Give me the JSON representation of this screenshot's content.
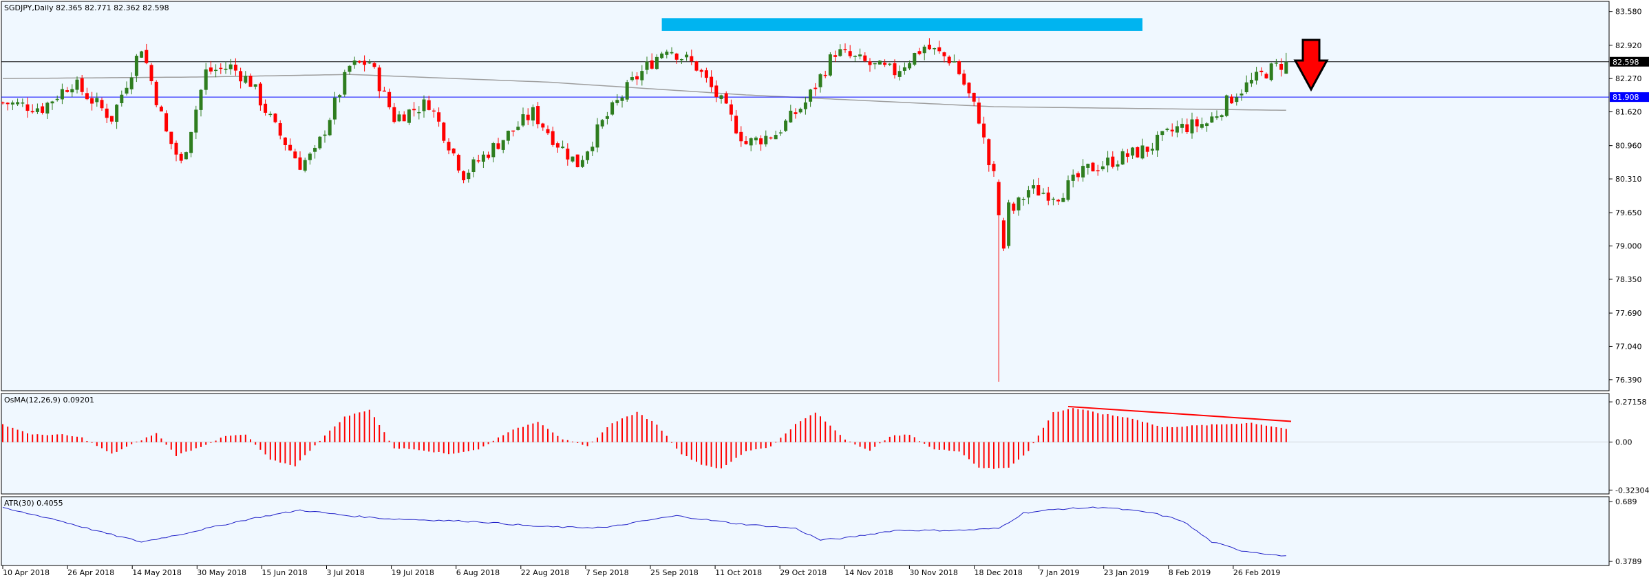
{
  "colors": {
    "background": "#f0f8ff",
    "bull": "#2e7d1f",
    "bear": "#ff0000",
    "ma": "#9e9e9e",
    "resistance_zone": "#00b4f0",
    "support_line": "#0000ff",
    "price_line": "#000000",
    "osma_bars": "#ff0000",
    "atr_line": "#2020c8",
    "trend_line": "#ff0000",
    "arrow": "#ff0000",
    "grid_text": "#000000"
  },
  "chart_data": [
    {
      "panel": "price",
      "type": "candlestick",
      "title": "SGDJPY,Daily  82.365 82.771 82.362 82.598",
      "ylim": [
        76.2,
        83.75
      ],
      "y_ticks": [
        "83.580",
        "82.920",
        "82.270",
        "81.620",
        "80.960",
        "80.310",
        "79.650",
        "79.000",
        "78.350",
        "77.690",
        "77.040",
        "76.390"
      ],
      "x_ticks": [
        "10 Apr 2018",
        "26 Apr 2018",
        "14 May 2018",
        "30 May 2018",
        "15 Jun 2018",
        "3 Jul 2018",
        "19 Jul 2018",
        "6 Aug 2018",
        "22 Aug 2018",
        "7 Sep 2018",
        "25 Sep 2018",
        "11 Oct 2018",
        "29 Oct 2018",
        "14 Nov 2018",
        "30 Nov 2018",
        "18 Dec 2018",
        "7 Jan 2019",
        "23 Jan 2019",
        "8 Feb 2019",
        "26 Feb 2019"
      ],
      "current_price_label": "82.598",
      "current_price": 82.598,
      "support_label": "81.908",
      "support_price": 81.908,
      "resistance_zone": [
        83.2,
        83.45
      ],
      "anchors": [
        [
          0,
          81.8
        ],
        [
          8,
          81.7
        ],
        [
          14,
          82.2
        ],
        [
          22,
          81.5
        ],
        [
          28,
          82.9
        ],
        [
          33,
          81.2
        ],
        [
          36,
          80.6
        ],
        [
          41,
          82.4
        ],
        [
          46,
          82.5
        ],
        [
          50,
          82.2
        ],
        [
          55,
          81.3
        ],
        [
          60,
          80.6
        ],
        [
          63,
          80.8
        ],
        [
          70,
          82.5
        ],
        [
          74,
          82.6
        ],
        [
          79,
          81.5
        ],
        [
          86,
          81.8
        ],
        [
          93,
          80.4
        ],
        [
          101,
          81.1
        ],
        [
          107,
          81.6
        ],
        [
          112,
          81.0
        ],
        [
          116,
          80.6
        ],
        [
          121,
          81.4
        ],
        [
          127,
          82.2
        ],
        [
          134,
          82.9
        ],
        [
          140,
          82.5
        ],
        [
          145,
          81.8
        ],
        [
          150,
          81.0
        ],
        [
          156,
          81.2
        ],
        [
          162,
          81.8
        ],
        [
          168,
          82.8
        ],
        [
          176,
          82.5
        ],
        [
          180,
          82.4
        ],
        [
          186,
          82.9
        ],
        [
          192,
          82.6
        ],
        [
          197,
          81.5
        ],
        [
          199,
          80.6
        ],
        [
          201,
          80.1
        ],
        [
          204,
          79.7
        ],
        [
          207,
          80.1
        ],
        [
          213,
          80.0
        ],
        [
          219,
          80.5
        ],
        [
          225,
          80.7
        ],
        [
          231,
          80.9
        ],
        [
          237,
          81.3
        ],
        [
          243,
          81.4
        ],
        [
          249,
          82.0
        ],
        [
          255,
          82.4
        ],
        [
          259,
          82.6
        ]
      ],
      "special_candles": [
        {
          "i": 201,
          "o": 80.25,
          "h": 80.3,
          "l": 76.35,
          "c": 79.6
        },
        {
          "i": 202,
          "o": 79.5,
          "h": 79.55,
          "l": 78.9,
          "c": 78.95
        },
        {
          "i": 203,
          "o": 79.0,
          "h": 79.9,
          "l": 78.95,
          "c": 79.85
        },
        {
          "i": 259,
          "o": 82.365,
          "h": 82.771,
          "l": 82.362,
          "c": 82.598
        }
      ],
      "moving_average": [
        [
          0,
          82.27
        ],
        [
          40,
          82.3
        ],
        [
          70,
          82.35
        ],
        [
          110,
          82.2
        ],
        [
          150,
          81.95
        ],
        [
          200,
          81.72
        ],
        [
          259,
          81.65
        ]
      ]
    },
    {
      "panel": "osma",
      "type": "bar",
      "title": "OsMA(12,26,9) 0.09201",
      "ylim": [
        -0.34,
        0.3
      ],
      "y_ticks": [
        "0.27158",
        "0.00",
        "-0.32304"
      ],
      "anchors": [
        [
          0,
          0.12
        ],
        [
          6,
          0.05
        ],
        [
          12,
          0.05
        ],
        [
          16,
          0.03
        ],
        [
          22,
          -0.08
        ],
        [
          27,
          0.0
        ],
        [
          31,
          0.06
        ],
        [
          35,
          -0.09
        ],
        [
          40,
          -0.03
        ],
        [
          45,
          0.04
        ],
        [
          49,
          0.05
        ],
        [
          54,
          -0.12
        ],
        [
          59,
          -0.16
        ],
        [
          63,
          -0.02
        ],
        [
          69,
          0.17
        ],
        [
          74,
          0.22
        ],
        [
          79,
          -0.04
        ],
        [
          84,
          -0.05
        ],
        [
          90,
          -0.08
        ],
        [
          96,
          -0.05
        ],
        [
          102,
          0.07
        ],
        [
          108,
          0.14
        ],
        [
          113,
          0.02
        ],
        [
          118,
          -0.03
        ],
        [
          123,
          0.13
        ],
        [
          128,
          0.2
        ],
        [
          132,
          0.12
        ],
        [
          137,
          -0.08
        ],
        [
          141,
          -0.15
        ],
        [
          145,
          -0.18
        ],
        [
          150,
          -0.06
        ],
        [
          155,
          -0.03
        ],
        [
          160,
          0.12
        ],
        [
          164,
          0.2
        ],
        [
          170,
          0.02
        ],
        [
          175,
          -0.06
        ],
        [
          179,
          0.04
        ],
        [
          183,
          0.05
        ],
        [
          188,
          -0.05
        ],
        [
          193,
          -0.06
        ],
        [
          197,
          -0.17
        ],
        [
          200,
          -0.18
        ],
        [
          203,
          -0.17
        ],
        [
          207,
          -0.06
        ],
        [
          212,
          0.2
        ],
        [
          216,
          0.23
        ],
        [
          222,
          0.19
        ],
        [
          228,
          0.16
        ],
        [
          234,
          0.1
        ],
        [
          240,
          0.11
        ],
        [
          246,
          0.12
        ],
        [
          252,
          0.13
        ],
        [
          259,
          0.09
        ]
      ],
      "trend_line": [
        [
          215,
          0.24
        ],
        [
          260,
          0.14
        ]
      ]
    },
    {
      "panel": "atr",
      "type": "line",
      "title": "ATR(30) 0.4055",
      "ylim": [
        0.365,
        0.7
      ],
      "y_ticks": [
        "0.689",
        "0.3789"
      ],
      "anchors": [
        [
          0,
          0.655
        ],
        [
          10,
          0.6
        ],
        [
          20,
          0.53
        ],
        [
          28,
          0.48
        ],
        [
          36,
          0.52
        ],
        [
          50,
          0.6
        ],
        [
          60,
          0.645
        ],
        [
          70,
          0.615
        ],
        [
          78,
          0.6
        ],
        [
          96,
          0.585
        ],
        [
          108,
          0.56
        ],
        [
          115,
          0.555
        ],
        [
          122,
          0.555
        ],
        [
          132,
          0.6
        ],
        [
          136,
          0.615
        ],
        [
          148,
          0.575
        ],
        [
          160,
          0.55
        ],
        [
          165,
          0.49
        ],
        [
          170,
          0.5
        ],
        [
          180,
          0.54
        ],
        [
          193,
          0.54
        ],
        [
          201,
          0.55
        ],
        [
          206,
          0.63
        ],
        [
          213,
          0.65
        ],
        [
          222,
          0.66
        ],
        [
          232,
          0.63
        ],
        [
          238,
          0.59
        ],
        [
          244,
          0.48
        ],
        [
          250,
          0.435
        ],
        [
          259,
          0.405
        ]
      ]
    }
  ],
  "annotations": {
    "down_arrow_icon": "down-arrow-icon"
  }
}
